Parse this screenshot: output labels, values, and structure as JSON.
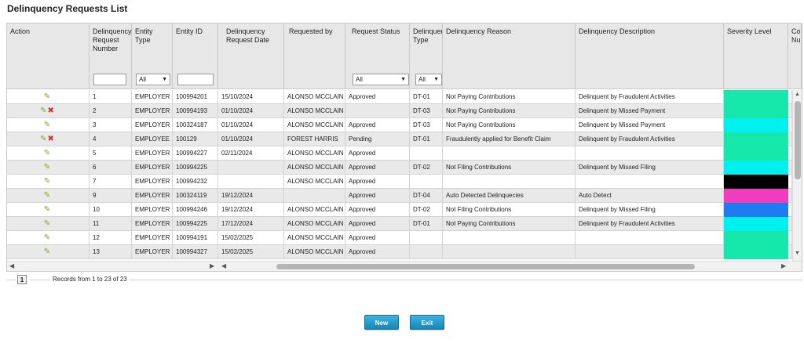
{
  "page": {
    "title": "Delinquency Requests List"
  },
  "columns": [
    "Action",
    "Delinquency Request Number",
    "Entity Type",
    "Entity ID",
    "Delinquency Request Date",
    "Requested by",
    "Request Status",
    "Delinquency Type",
    "Delinquency Reason",
    "Delinquency Description",
    "Severity Level",
    "Co Nu"
  ],
  "filters": {
    "entity_type": "All",
    "request_status": "All",
    "delinquency_type": "All"
  },
  "rows": [
    {
      "icons": [
        "edit"
      ],
      "number": "1",
      "entity_type": "EMPLOYER",
      "entity_id": "100994201",
      "date": "15/10/2024",
      "requested_by": "ALONSO MCCLAIN",
      "status": "Approved",
      "type": "DT-01",
      "reason": "Not Paying Contributions",
      "description": "Delinquent by Fraudulent Activities",
      "severity_color": "#16e8ac"
    },
    {
      "icons": [
        "edit",
        "delete"
      ],
      "number": "2",
      "entity_type": "EMPLOYER",
      "entity_id": "100994193",
      "date": "01/10/2024",
      "requested_by": "ALONSO MCCLAIN",
      "status": "",
      "type": "DT-03",
      "reason": "Not Paying Contributions",
      "description": "Delinquent by Missed Payment",
      "severity_color": "#16e8ac"
    },
    {
      "icons": [
        "edit"
      ],
      "number": "3",
      "entity_type": "EMPLOYER",
      "entity_id": "100324187",
      "date": "01/10/2024",
      "requested_by": "ALONSO MCCLAIN",
      "status": "Approved",
      "type": "DT-03",
      "reason": "Not Paying Contributions",
      "description": "Delinquent by Missed Payment",
      "severity_color": "#00f0f0"
    },
    {
      "icons": [
        "edit",
        "delete"
      ],
      "number": "4",
      "entity_type": "EMPLOYEE",
      "entity_id": "100129",
      "date": "01/10/2024",
      "requested_by": "FOREST HARRIS",
      "status": "Pending",
      "type": "DT-01",
      "reason": "Fraudulently applied for Benefit Claim",
      "description": "Delinquent by Fraudulent Activities",
      "severity_color": "#16e8ac"
    },
    {
      "icons": [
        "edit"
      ],
      "number": "5",
      "entity_type": "EMPLOYER",
      "entity_id": "100994227",
      "date": "02/11/2024",
      "requested_by": "ALONSO MCCLAIN",
      "status": "Approved",
      "type": "",
      "reason": "",
      "description": "",
      "severity_color": "#16e8ac"
    },
    {
      "icons": [
        "edit"
      ],
      "number": "6",
      "entity_type": "EMPLOYER",
      "entity_id": "100994225",
      "date": "",
      "requested_by": "ALONSO MCCLAIN",
      "status": "Approved",
      "type": "DT-02",
      "reason": "Not Filing Contributions",
      "description": "Delinquent by Missed Filing",
      "severity_color": "#00f0f0"
    },
    {
      "icons": [
        "edit"
      ],
      "number": "7",
      "entity_type": "EMPLOYER",
      "entity_id": "100994232",
      "date": "",
      "requested_by": "ALONSO MCCLAIN",
      "status": "Approved",
      "type": "",
      "reason": "",
      "description": "",
      "severity_color": "#000000"
    },
    {
      "icons": [
        "edit"
      ],
      "number": "9",
      "entity_type": "EMPLOYER",
      "entity_id": "100324119",
      "date": "19/12/2024",
      "requested_by": "",
      "status": "Approved",
      "type": "DT-04",
      "reason": "Auto Detected Delinquecies",
      "description": "Auto Detect",
      "severity_color": "#f03cbe"
    },
    {
      "icons": [
        "edit"
      ],
      "number": "10",
      "entity_type": "EMPLOYER",
      "entity_id": "100994246",
      "date": "19/12/2024",
      "requested_by": "ALONSO MCCLAIN",
      "status": "Approved",
      "type": "DT-02",
      "reason": "Not Filing Contributions",
      "description": "Delinquent by Missed Filing",
      "severity_color": "#1e7cf0"
    },
    {
      "icons": [
        "edit"
      ],
      "number": "11",
      "entity_type": "EMPLOYER",
      "entity_id": "100994225",
      "date": "17/12/2024",
      "requested_by": "ALONSO MCCLAIN",
      "status": "Approved",
      "type": "DT-01",
      "reason": "Not Paying Contributions",
      "description": "Delinquent by Fraudulent Activities",
      "severity_color": "#00f0f0"
    },
    {
      "icons": [
        "edit"
      ],
      "number": "12",
      "entity_type": "EMPLOYER",
      "entity_id": "100994191",
      "date": "15/02/2025",
      "requested_by": "ALONSO MCCLAIN",
      "status": "Approved",
      "type": "",
      "reason": "",
      "description": "",
      "severity_color": "#16e8ac"
    },
    {
      "icons": [
        "edit"
      ],
      "number": "13",
      "entity_type": "EMPLOYER",
      "entity_id": "100994327",
      "date": "15/02/2025",
      "requested_by": "ALONSO MCCLAIN",
      "status": "Approved",
      "type": "",
      "reason": "",
      "description": "",
      "severity_color": "#16e8ac"
    }
  ],
  "pagination": {
    "current_page": "1",
    "records_text": "Records from 1 to 23 of 23"
  },
  "buttons": {
    "new": "New",
    "exit": "Exit"
  },
  "colors": {
    "button_accent": "#1a8fc2",
    "header_bg": "#e7e7e7",
    "row_alt": "#e9e9e9"
  }
}
